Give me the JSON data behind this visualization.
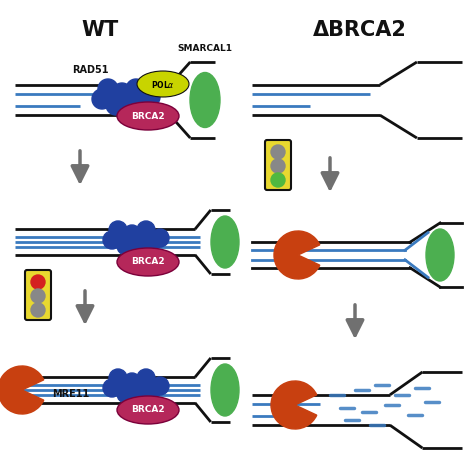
{
  "bg_color": "#ffffff",
  "wt_title": "WT",
  "brca2_title": "ΔBRCA2",
  "smarcal1_label": "SMARCAL1",
  "rad51_label": "RAD51",
  "pola_label": "POLα",
  "brca2_label": "BRCA2",
  "mre11_label": "MRE11",
  "black": "#111111",
  "blue_line": "#3a7abf",
  "green_ellipse": "#4caf50",
  "yellow_ellipse": "#c8d400",
  "pink_ellipse": "#b5275a",
  "dark_blue_circle": "#2040a0",
  "orange_red": "#c84010",
  "arrow_color": "#707070",
  "traffic_yellow": "#e8d830",
  "traffic_red": "#d42020",
  "traffic_grey": "#888888",
  "traffic_green": "#50b840"
}
